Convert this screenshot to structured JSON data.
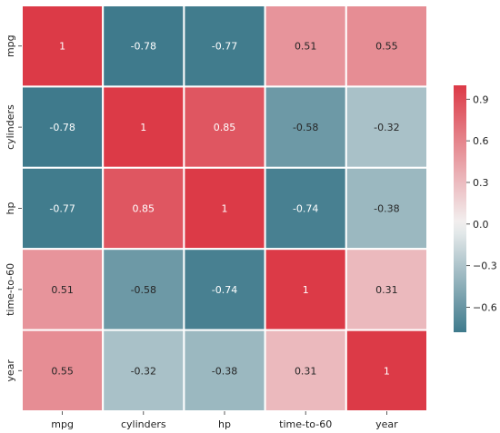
{
  "chart_data": {
    "type": "heatmap",
    "title": "",
    "xlabel": "",
    "ylabel": "",
    "rows": [
      "mpg",
      "cylinders",
      "hp",
      "time-to-60",
      "year"
    ],
    "columns": [
      "mpg",
      "cylinders",
      "hp",
      "time-to-60",
      "year"
    ],
    "values": [
      [
        1,
        -0.78,
        -0.77,
        0.51,
        0.55
      ],
      [
        -0.78,
        1,
        0.85,
        -0.58,
        -0.32
      ],
      [
        -0.77,
        0.85,
        1,
        -0.74,
        -0.38
      ],
      [
        0.51,
        -0.58,
        -0.74,
        1,
        0.31
      ],
      [
        0.55,
        -0.32,
        -0.38,
        0.31,
        1
      ]
    ],
    "cell_labels": [
      [
        "1",
        "-0.78",
        "-0.77",
        "0.51",
        "0.55"
      ],
      [
        "-0.78",
        "1",
        "0.85",
        "-0.58",
        "-0.32"
      ],
      [
        "-0.77",
        "0.85",
        "1",
        "-0.74",
        "-0.38"
      ],
      [
        "0.51",
        "-0.58",
        "-0.74",
        "1",
        "0.31"
      ],
      [
        "0.55",
        "-0.32",
        "-0.38",
        "0.31",
        "1"
      ]
    ],
    "colorbar": {
      "range": [
        -0.78,
        1
      ],
      "ticks": [
        0.9,
        0.6,
        0.3,
        0.0,
        -0.3,
        -0.6
      ],
      "tick_labels": [
        "0.9",
        "0.6",
        "0.3",
        "0.0",
        "−0.3",
        "−0.6"
      ],
      "placement": "right"
    },
    "colormap": {
      "negative": "#3f7a8c",
      "center": "#f2f2f2",
      "positive": "#dc3a47"
    },
    "grid": true,
    "cell_border_color": "#ffffff"
  }
}
